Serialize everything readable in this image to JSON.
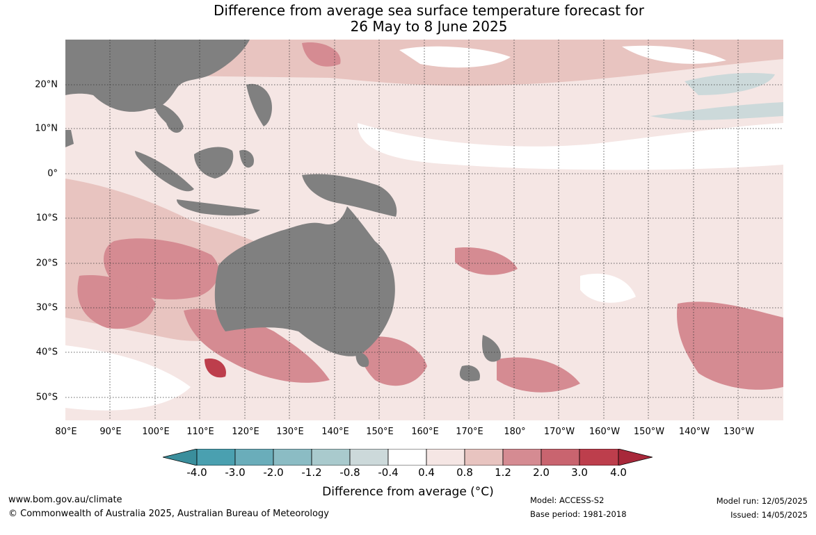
{
  "title": {
    "line1": "Difference from average sea surface temperature forecast for",
    "line2": "26 May to 8 June 2025"
  },
  "map": {
    "latitude_labels": [
      "20°N",
      "10°N",
      "0°",
      "10°S",
      "20°S",
      "30°S",
      "40°S",
      "50°S"
    ],
    "longitude_labels": [
      "80°E",
      "90°E",
      "100°E",
      "110°E",
      "120°E",
      "130°E",
      "140°E",
      "150°E",
      "160°E",
      "170°E",
      "180°",
      "170°W",
      "160°W",
      "150°W",
      "140°W",
      "130°W"
    ],
    "land_color": "#808080",
    "gridlines": "dotted"
  },
  "colorbar": {
    "ticks": [
      "-4.0",
      "-3.0",
      "-2.0",
      "-1.2",
      "-0.8",
      "-0.4",
      "0.4",
      "0.8",
      "1.2",
      "2.0",
      "3.0",
      "4.0"
    ],
    "colors": [
      "#3a8e9c",
      "#4aa0b0",
      "#6aadba",
      "#8bbcc4",
      "#a9cacd",
      "#ccd9da",
      "#ffffff",
      "#f5e6e4",
      "#e8c4c0",
      "#d58b92",
      "#c9646f",
      "#bd3e4c",
      "#a8283a"
    ],
    "label": "Difference from average (°C)"
  },
  "footer": {
    "website": "www.bom.gov.au/climate",
    "copyright": "© Commonwealth of Australia 2025, Australian Bureau of Meteorology",
    "model": "Model: ACCESS-S2",
    "base_period": "Base period: 1981-2018",
    "model_run": "Model run: 12/05/2025",
    "issued": "Issued: 14/05/2025"
  }
}
